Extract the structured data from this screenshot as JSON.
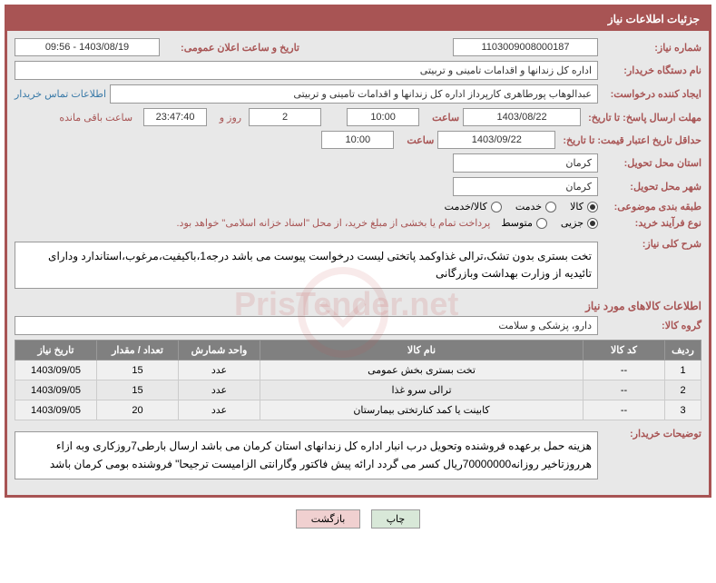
{
  "header": {
    "title": "جزئیات اطلاعات نیاز"
  },
  "form": {
    "need_number_label": "شماره نیاز:",
    "need_number": "1103009008000187",
    "announce_date_label": "تاریخ و ساعت اعلان عمومی:",
    "announce_date": "1403/08/19 - 09:56",
    "buyer_org_label": "نام دستگاه خریدار:",
    "buyer_org": "اداره کل زندانها و اقدامات تامینی و تربیتی",
    "requester_label": "ایجاد کننده درخواست:",
    "requester": "عبدالوهاب پورطاهری کارپرداز اداره کل زندانها و اقدامات تامینی و تربیتی",
    "contact_link": "اطلاعات تماس خریدار",
    "deadline_label": "مهلت ارسال پاسخ: تا تاریخ:",
    "deadline_date": "1403/08/22",
    "time_label": "ساعت",
    "deadline_time": "10:00",
    "days_count": "2",
    "days_and": "روز و",
    "countdown": "23:47:40",
    "remaining": "ساعت باقی مانده",
    "validity_label": "حداقل تاریخ اعتبار قیمت: تا تاریخ:",
    "validity_date": "1403/09/22",
    "validity_time": "10:00",
    "delivery_province_label": "استان محل تحویل:",
    "delivery_province": "کرمان",
    "delivery_city_label": "شهر محل تحویل:",
    "delivery_city": "کرمان",
    "category_label": "طبقه بندی موضوعی:",
    "cat_goods": "کالا",
    "cat_service": "خدمت",
    "cat_goods_service": "کالا/خدمت",
    "purchase_type_label": "نوع فرآیند خرید:",
    "pt_partial": "جزیی",
    "pt_medium": "متوسط",
    "purchase_note": "پرداخت تمام یا بخشی از مبلغ خرید، از محل \"اسناد خزانه اسلامی\" خواهد بود.",
    "desc_label": "شرح کلی نیاز:",
    "desc_text": "تخت بستری بدون تشک،ترالی غذاوکمد پاتختی لیست درخواست پیوست می باشد درجه1،باکیفیت،مرغوب،استاندارد ودارای تائیدیه از وزارت بهداشت وبازرگانی",
    "goods_info_title": "اطلاعات کالاهای مورد نیاز",
    "goods_group_label": "گروه کالا:",
    "goods_group": "دارو، پزشکی و سلامت",
    "buyer_notes_label": "توضیحات خریدار:",
    "buyer_notes": "هزینه حمل برعهده فروشنده وتحویل درب انبار اداره کل زندانهای استان کرمان می باشد ارسال بارطی7روزکاری وبه ازاء هرروزتاخیر روزانه70000000ریال کسر می گردد ارائه پیش فاکتور وگارانتی الزامیست ترجیحا\" فروشنده بومی کرمان باشد"
  },
  "table": {
    "headers": {
      "row": "ردیف",
      "code": "کد کالا",
      "name": "نام کالا",
      "unit": "واحد شمارش",
      "qty": "تعداد / مقدار",
      "date": "تاریخ نیاز"
    },
    "rows": [
      {
        "n": "1",
        "code": "--",
        "name": "تخت بستری بخش عمومی",
        "unit": "عدد",
        "qty": "15",
        "date": "1403/09/05"
      },
      {
        "n": "2",
        "code": "--",
        "name": "ترالی سرو غذا",
        "unit": "عدد",
        "qty": "15",
        "date": "1403/09/05"
      },
      {
        "n": "3",
        "code": "--",
        "name": "کابینت یا کمد کنارتختی بیمارستان",
        "unit": "عدد",
        "qty": "20",
        "date": "1403/09/05"
      }
    ]
  },
  "buttons": {
    "print": "چاپ",
    "back": "بازگشت"
  },
  "watermark": "PrisTender.net"
}
